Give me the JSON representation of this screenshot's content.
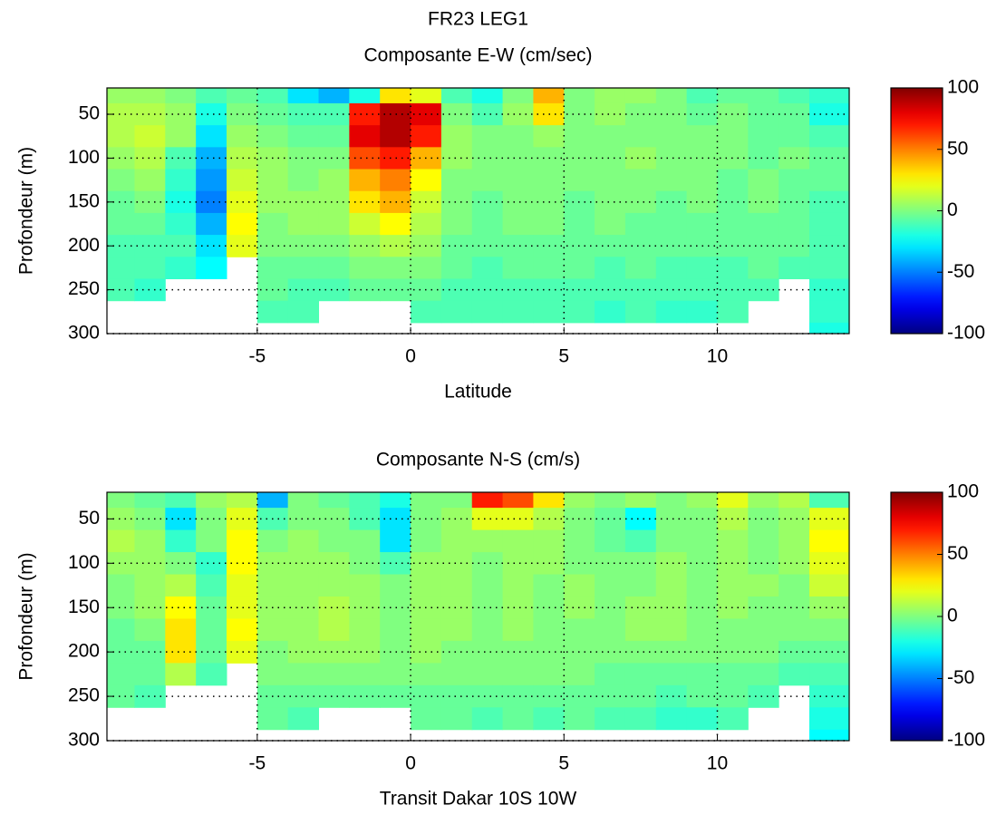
{
  "chart_data": [
    {
      "type": "heatmap",
      "title": "FR23 LEG1",
      "subtitle": "Composante E-W (cm/sec)",
      "xlabel": "Latitude",
      "ylabel": "Profondeur (m)",
      "colormap": "jet",
      "grid": true,
      "y_reversed": true,
      "x": [
        -9.5,
        -8.5,
        -7.5,
        -6.5,
        -5.5,
        -4.5,
        -3.5,
        -2.5,
        -1.5,
        -0.5,
        0.5,
        1.5,
        2.5,
        3.5,
        4.5,
        5.5,
        6.5,
        7.5,
        8.5,
        9.5,
        10.5,
        11.5,
        12.5,
        13.5
      ],
      "y": [
        25,
        50,
        75,
        100,
        125,
        150,
        175,
        200,
        225,
        250,
        275,
        300
      ],
      "values": [
        [
          5,
          5,
          0,
          -10,
          -5,
          -10,
          -30,
          -40,
          -20,
          30,
          20,
          -10,
          -20,
          0,
          40,
          0,
          5,
          5,
          0,
          -10,
          -5,
          -5,
          -10,
          -15
        ],
        [
          10,
          10,
          5,
          -20,
          0,
          -5,
          -10,
          -10,
          70,
          90,
          80,
          0,
          -10,
          5,
          30,
          0,
          5,
          0,
          0,
          -5,
          0,
          -5,
          -5,
          -20
        ],
        [
          10,
          15,
          5,
          -30,
          5,
          0,
          -5,
          -5,
          80,
          90,
          70,
          5,
          0,
          0,
          5,
          0,
          0,
          0,
          0,
          0,
          0,
          -5,
          -5,
          -10
        ],
        [
          5,
          10,
          -10,
          -40,
          10,
          5,
          0,
          0,
          60,
          70,
          40,
          5,
          0,
          0,
          0,
          0,
          0,
          5,
          0,
          0,
          0,
          -5,
          0,
          -5
        ],
        [
          0,
          5,
          -15,
          -45,
          15,
          5,
          0,
          5,
          40,
          50,
          25,
          0,
          0,
          0,
          0,
          0,
          0,
          0,
          0,
          0,
          -5,
          0,
          -5,
          -5
        ],
        [
          -5,
          0,
          -20,
          -50,
          20,
          5,
          5,
          5,
          30,
          40,
          15,
          0,
          -5,
          0,
          0,
          -5,
          0,
          0,
          -5,
          0,
          -5,
          0,
          -5,
          -10
        ],
        [
          -5,
          -5,
          -15,
          -40,
          25,
          0,
          5,
          5,
          15,
          25,
          10,
          0,
          -5,
          0,
          0,
          -5,
          0,
          -5,
          -5,
          -5,
          -5,
          -5,
          -5,
          -10
        ],
        [
          -10,
          -10,
          -10,
          -30,
          20,
          0,
          0,
          0,
          5,
          10,
          5,
          -5,
          -5,
          -5,
          -5,
          -5,
          -5,
          -5,
          -5,
          -5,
          -5,
          -5,
          -5,
          -10
        ],
        [
          -10,
          -10,
          -15,
          -25,
          null,
          -5,
          -5,
          -5,
          0,
          0,
          0,
          -5,
          -10,
          -5,
          -5,
          -5,
          -10,
          -5,
          -10,
          -10,
          -10,
          -5,
          -10,
          -10
        ],
        [
          -10,
          -15,
          null,
          null,
          null,
          -5,
          -10,
          -10,
          -5,
          -5,
          -5,
          -10,
          -10,
          -10,
          -10,
          -10,
          -10,
          -10,
          -10,
          -10,
          -10,
          -10,
          null,
          -15
        ],
        [
          null,
          null,
          null,
          null,
          null,
          -10,
          -10,
          null,
          null,
          null,
          -10,
          -10,
          -10,
          -10,
          -10,
          -10,
          -15,
          -10,
          -15,
          -15,
          -10,
          null,
          null,
          -15
        ],
        [
          null,
          null,
          null,
          null,
          null,
          null,
          null,
          null,
          null,
          null,
          null,
          null,
          null,
          null,
          null,
          null,
          null,
          null,
          null,
          null,
          null,
          null,
          null,
          -20
        ]
      ],
      "xlim": [
        -9.9,
        14.3
      ],
      "ylim": [
        20,
        300
      ],
      "xticks": [
        -5,
        0,
        5,
        10
      ],
      "yticks": [
        50,
        100,
        150,
        200,
        250,
        300
      ],
      "clim": [
        -100,
        100
      ],
      "cticks": [
        -100,
        -50,
        0,
        50,
        100
      ]
    },
    {
      "type": "heatmap",
      "title": "Composante N-S (cm/s)",
      "xlabel": "Transit Dakar 10S 10W",
      "ylabel": "Profondeur (m)",
      "colormap": "jet",
      "grid": true,
      "y_reversed": true,
      "x": [
        -9.5,
        -8.5,
        -7.5,
        -6.5,
        -5.5,
        -4.5,
        -3.5,
        -2.5,
        -1.5,
        -0.5,
        0.5,
        1.5,
        2.5,
        3.5,
        4.5,
        5.5,
        6.5,
        7.5,
        8.5,
        9.5,
        10.5,
        11.5,
        12.5,
        13.5
      ],
      "y": [
        25,
        50,
        75,
        100,
        125,
        150,
        175,
        200,
        225,
        250,
        275,
        300
      ],
      "values": [
        [
          0,
          -5,
          -10,
          5,
          10,
          -40,
          0,
          -5,
          -10,
          -20,
          0,
          0,
          70,
          60,
          30,
          5,
          0,
          5,
          0,
          5,
          20,
          5,
          10,
          -10
        ],
        [
          5,
          0,
          -30,
          0,
          20,
          -10,
          0,
          0,
          -10,
          -30,
          0,
          5,
          20,
          20,
          10,
          0,
          -5,
          -25,
          0,
          0,
          10,
          0,
          5,
          20
        ],
        [
          10,
          5,
          -15,
          0,
          25,
          0,
          5,
          0,
          0,
          -30,
          0,
          5,
          5,
          5,
          5,
          0,
          -5,
          -10,
          0,
          0,
          5,
          0,
          5,
          25
        ],
        [
          5,
          5,
          0,
          -15,
          25,
          5,
          5,
          5,
          0,
          -10,
          5,
          5,
          0,
          5,
          5,
          0,
          0,
          0,
          5,
          0,
          5,
          0,
          5,
          20
        ],
        [
          0,
          5,
          10,
          -10,
          20,
          5,
          5,
          5,
          5,
          0,
          5,
          5,
          0,
          5,
          0,
          5,
          0,
          0,
          5,
          0,
          5,
          5,
          0,
          15
        ],
        [
          0,
          5,
          25,
          -5,
          20,
          5,
          5,
          10,
          5,
          0,
          5,
          5,
          0,
          5,
          0,
          5,
          0,
          5,
          5,
          0,
          5,
          0,
          0,
          5
        ],
        [
          -5,
          0,
          30,
          -5,
          25,
          5,
          5,
          10,
          5,
          0,
          5,
          5,
          0,
          5,
          0,
          0,
          0,
          5,
          5,
          0,
          0,
          0,
          0,
          0
        ],
        [
          -5,
          -5,
          30,
          -5,
          20,
          0,
          5,
          5,
          5,
          0,
          5,
          0,
          0,
          0,
          0,
          0,
          0,
          0,
          0,
          0,
          0,
          0,
          -5,
          -5
        ],
        [
          -5,
          -5,
          10,
          -10,
          null,
          0,
          0,
          0,
          0,
          0,
          0,
          0,
          0,
          0,
          0,
          0,
          -5,
          -5,
          -5,
          -5,
          -5,
          -5,
          -10,
          -10
        ],
        [
          -5,
          -10,
          null,
          null,
          null,
          -5,
          -5,
          -5,
          -5,
          -5,
          -5,
          -5,
          -5,
          -5,
          -5,
          -5,
          -5,
          -5,
          -10,
          -5,
          -5,
          -10,
          null,
          -15
        ],
        [
          null,
          null,
          null,
          null,
          null,
          -5,
          -10,
          null,
          null,
          null,
          -5,
          -5,
          -10,
          -5,
          -10,
          -5,
          -10,
          -10,
          -15,
          -15,
          -10,
          null,
          null,
          -20
        ],
        [
          null,
          null,
          null,
          null,
          null,
          null,
          null,
          null,
          null,
          null,
          null,
          null,
          null,
          null,
          null,
          null,
          null,
          null,
          null,
          null,
          null,
          null,
          null,
          -25
        ]
      ],
      "xlim": [
        -9.9,
        14.3
      ],
      "ylim": [
        20,
        300
      ],
      "xticks": [
        -5,
        0,
        5,
        10
      ],
      "yticks": [
        50,
        100,
        150,
        200,
        250,
        300
      ],
      "clim": [
        -100,
        100
      ],
      "cticks": [
        -100,
        -50,
        0,
        50,
        100
      ]
    }
  ]
}
